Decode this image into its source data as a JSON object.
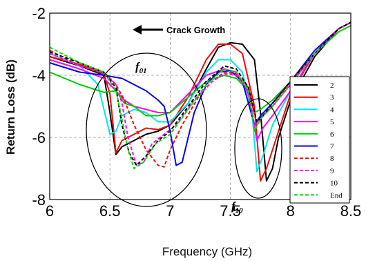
{
  "chart_data": {
    "type": "line",
    "title": "",
    "xlabel": "Frequency (GHz)",
    "ylabel": "Return Loss (dB)",
    "xlim": [
      6,
      8.5
    ],
    "ylim": [
      -8,
      -2
    ],
    "xticks": [
      6,
      6.5,
      7,
      7.5,
      8,
      8.5
    ],
    "yticks": [
      -2,
      -4,
      -6,
      -8
    ],
    "xtick_labels": [
      "6",
      "6.5",
      "7",
      "7.5",
      "8",
      "8.5"
    ],
    "ytick_labels": [
      "-2",
      "-4",
      "-6",
      "-8"
    ],
    "grid": "dashed",
    "legend_position": "right",
    "annotations": [
      {
        "text": "Crack Growth",
        "arrow": "left"
      },
      {
        "text": "f",
        "subscript": "01"
      },
      {
        "text": "f",
        "subscript": "10"
      }
    ],
    "series": [
      {
        "name": "2",
        "color": "#000000",
        "dash": false,
        "points": [
          [
            6,
            -3.4
          ],
          [
            6.25,
            -3.7
          ],
          [
            6.45,
            -4.0
          ],
          [
            6.5,
            -5.2
          ],
          [
            6.55,
            -6.55
          ],
          [
            6.6,
            -6.3
          ],
          [
            6.7,
            -6.1
          ],
          [
            6.8,
            -5.9
          ],
          [
            6.9,
            -5.8
          ],
          [
            7.0,
            -5.6
          ],
          [
            7.15,
            -4.9
          ],
          [
            7.3,
            -3.8
          ],
          [
            7.4,
            -3.1
          ],
          [
            7.5,
            -2.95
          ],
          [
            7.6,
            -3.0
          ],
          [
            7.7,
            -3.5
          ],
          [
            7.75,
            -5.2
          ],
          [
            7.8,
            -7.4
          ],
          [
            7.85,
            -7.0
          ],
          [
            7.9,
            -6.0
          ],
          [
            8.0,
            -4.8
          ],
          [
            8.2,
            -3.4
          ],
          [
            8.4,
            -2.5
          ],
          [
            8.5,
            -2.3
          ]
        ]
      },
      {
        "name": "3",
        "color": "#ff0000",
        "dash": false,
        "points": [
          [
            6,
            -3.4
          ],
          [
            6.25,
            -3.65
          ],
          [
            6.45,
            -3.95
          ],
          [
            6.5,
            -4.6
          ],
          [
            6.55,
            -6.5
          ],
          [
            6.6,
            -6.1
          ],
          [
            6.7,
            -5.9
          ],
          [
            6.8,
            -5.7
          ],
          [
            6.9,
            -5.75
          ],
          [
            7.0,
            -5.6
          ],
          [
            7.15,
            -4.7
          ],
          [
            7.3,
            -3.5
          ],
          [
            7.4,
            -3.0
          ],
          [
            7.5,
            -3.0
          ],
          [
            7.6,
            -3.3
          ],
          [
            7.7,
            -5.0
          ],
          [
            7.75,
            -7.4
          ],
          [
            7.8,
            -7.0
          ],
          [
            7.9,
            -5.8
          ],
          [
            8.0,
            -4.6
          ],
          [
            8.2,
            -3.3
          ],
          [
            8.4,
            -2.5
          ],
          [
            8.5,
            -2.3
          ]
        ]
      },
      {
        "name": "4",
        "color": "#00e5ee",
        "dash": false,
        "points": [
          [
            6,
            -3.3
          ],
          [
            6.25,
            -3.7
          ],
          [
            6.4,
            -4.3
          ],
          [
            6.5,
            -5.9
          ],
          [
            6.55,
            -5.8
          ],
          [
            6.6,
            -5.3
          ],
          [
            6.7,
            -5.1
          ],
          [
            6.8,
            -5.2
          ],
          [
            6.9,
            -5.5
          ],
          [
            7.0,
            -5.5
          ],
          [
            7.15,
            -4.9
          ],
          [
            7.3,
            -3.9
          ],
          [
            7.4,
            -3.5
          ],
          [
            7.5,
            -3.5
          ],
          [
            7.6,
            -3.9
          ],
          [
            7.68,
            -5.2
          ],
          [
            7.72,
            -7.1
          ],
          [
            7.77,
            -6.6
          ],
          [
            7.85,
            -5.6
          ],
          [
            8.0,
            -4.5
          ],
          [
            8.2,
            -3.3
          ],
          [
            8.4,
            -2.5
          ],
          [
            8.5,
            -2.3
          ]
        ]
      },
      {
        "name": "5",
        "color": "#ff00ff",
        "dash": false,
        "points": [
          [
            6,
            -3.5
          ],
          [
            6.25,
            -3.8
          ],
          [
            6.45,
            -4.1
          ],
          [
            6.55,
            -4.5
          ],
          [
            6.62,
            -4.8
          ],
          [
            6.7,
            -5.0
          ],
          [
            6.8,
            -5.1
          ],
          [
            6.9,
            -5.2
          ],
          [
            7.0,
            -5.2
          ],
          [
            7.15,
            -4.6
          ],
          [
            7.3,
            -4.0
          ],
          [
            7.45,
            -3.8
          ],
          [
            7.55,
            -3.9
          ],
          [
            7.65,
            -4.6
          ],
          [
            7.72,
            -6.1
          ],
          [
            7.77,
            -5.7
          ],
          [
            7.85,
            -5.3
          ],
          [
            8.0,
            -4.5
          ],
          [
            8.2,
            -3.3
          ],
          [
            8.4,
            -2.5
          ],
          [
            8.5,
            -2.3
          ]
        ]
      },
      {
        "name": "6",
        "color": "#00cc00",
        "dash": false,
        "points": [
          [
            6,
            -3.9
          ],
          [
            6.25,
            -4.3
          ],
          [
            6.45,
            -4.55
          ],
          [
            6.55,
            -4.5
          ],
          [
            6.62,
            -4.9
          ],
          [
            6.7,
            -5.0
          ],
          [
            6.8,
            -5.3
          ],
          [
            6.9,
            -5.3
          ],
          [
            7.0,
            -5.2
          ],
          [
            7.15,
            -4.7
          ],
          [
            7.3,
            -4.2
          ],
          [
            7.45,
            -4.0
          ],
          [
            7.55,
            -4.1
          ],
          [
            7.65,
            -4.5
          ],
          [
            7.7,
            -5.2
          ],
          [
            7.75,
            -5.1
          ],
          [
            7.85,
            -4.8
          ],
          [
            8.0,
            -4.2
          ],
          [
            8.2,
            -3.3
          ],
          [
            8.4,
            -2.6
          ],
          [
            8.5,
            -2.4
          ]
        ]
      },
      {
        "name": "7",
        "color": "#0000ff",
        "dash": false,
        "points": [
          [
            6,
            -3.6
          ],
          [
            6.25,
            -3.9
          ],
          [
            6.45,
            -4.0
          ],
          [
            6.6,
            -4.1
          ],
          [
            6.7,
            -4.3
          ],
          [
            6.8,
            -4.5
          ],
          [
            6.9,
            -4.8
          ],
          [
            6.95,
            -5.0
          ],
          [
            7.0,
            -5.8
          ],
          [
            7.05,
            -6.9
          ],
          [
            7.1,
            -6.8
          ],
          [
            7.2,
            -5.2
          ],
          [
            7.3,
            -4.3
          ],
          [
            7.4,
            -3.9
          ],
          [
            7.5,
            -3.85
          ],
          [
            7.6,
            -4.2
          ],
          [
            7.7,
            -5.6
          ],
          [
            7.75,
            -5.3
          ],
          [
            7.85,
            -4.9
          ],
          [
            8.0,
            -4.2
          ],
          [
            8.2,
            -3.2
          ],
          [
            8.4,
            -2.5
          ],
          [
            8.5,
            -2.3
          ]
        ]
      },
      {
        "name": "8",
        "color": "#ff0000",
        "dash": true,
        "points": [
          [
            6,
            -3.2
          ],
          [
            6.25,
            -3.7
          ],
          [
            6.45,
            -3.9
          ],
          [
            6.55,
            -4.3
          ],
          [
            6.62,
            -4.8
          ],
          [
            6.7,
            -5.6
          ],
          [
            6.8,
            -6.4
          ],
          [
            6.9,
            -6.9
          ],
          [
            6.95,
            -6.95
          ],
          [
            7.0,
            -6.4
          ],
          [
            7.1,
            -5.6
          ],
          [
            7.25,
            -4.6
          ],
          [
            7.35,
            -4.2
          ],
          [
            7.45,
            -3.9
          ],
          [
            7.55,
            -3.95
          ],
          [
            7.65,
            -4.4
          ],
          [
            7.72,
            -5.6
          ],
          [
            7.77,
            -5.3
          ],
          [
            7.85,
            -5.0
          ],
          [
            8.0,
            -4.2
          ],
          [
            8.2,
            -3.3
          ],
          [
            8.4,
            -2.5
          ],
          [
            8.5,
            -2.3
          ]
        ]
      },
      {
        "name": "9",
        "color": "#ff00ff",
        "dash": true,
        "points": [
          [
            6,
            -3.3
          ],
          [
            6.25,
            -3.7
          ],
          [
            6.45,
            -3.95
          ],
          [
            6.55,
            -4.3
          ],
          [
            6.6,
            -4.9
          ],
          [
            6.65,
            -6.0
          ],
          [
            6.72,
            -6.9
          ],
          [
            6.78,
            -6.8
          ],
          [
            6.85,
            -6.2
          ],
          [
            6.95,
            -5.9
          ],
          [
            7.05,
            -5.6
          ],
          [
            7.2,
            -4.8
          ],
          [
            7.35,
            -4.2
          ],
          [
            7.45,
            -3.95
          ],
          [
            7.55,
            -4.0
          ],
          [
            7.65,
            -4.5
          ],
          [
            7.7,
            -5.6
          ],
          [
            7.75,
            -5.4
          ],
          [
            7.85,
            -5.0
          ],
          [
            8.0,
            -4.3
          ],
          [
            8.2,
            -3.3
          ],
          [
            8.4,
            -2.5
          ],
          [
            8.5,
            -2.3
          ]
        ]
      },
      {
        "name": "10",
        "color": "#000000",
        "dash": true,
        "points": [
          [
            6,
            -3.25
          ],
          [
            6.25,
            -3.6
          ],
          [
            6.45,
            -3.9
          ],
          [
            6.55,
            -4.4
          ],
          [
            6.6,
            -5.6
          ],
          [
            6.66,
            -6.5
          ],
          [
            6.72,
            -6.9
          ],
          [
            6.8,
            -6.6
          ],
          [
            6.9,
            -6.1
          ],
          [
            7.0,
            -5.8
          ],
          [
            7.15,
            -5.0
          ],
          [
            7.3,
            -4.2
          ],
          [
            7.45,
            -3.7
          ],
          [
            7.55,
            -3.8
          ],
          [
            7.65,
            -4.4
          ],
          [
            7.72,
            -5.5
          ],
          [
            7.77,
            -5.3
          ],
          [
            7.85,
            -4.9
          ],
          [
            8.0,
            -4.2
          ],
          [
            8.2,
            -3.3
          ],
          [
            8.4,
            -2.5
          ],
          [
            8.5,
            -2.3
          ]
        ]
      },
      {
        "name": "End",
        "color": "#00dd00",
        "dash": true,
        "points": [
          [
            6,
            -3.1
          ],
          [
            6.25,
            -3.6
          ],
          [
            6.45,
            -3.9
          ],
          [
            6.55,
            -4.5
          ],
          [
            6.6,
            -5.4
          ],
          [
            6.65,
            -6.4
          ],
          [
            6.7,
            -7.0
          ],
          [
            6.78,
            -6.8
          ],
          [
            6.88,
            -6.2
          ],
          [
            7.0,
            -5.9
          ],
          [
            7.15,
            -5.1
          ],
          [
            7.3,
            -4.3
          ],
          [
            7.45,
            -3.8
          ],
          [
            7.55,
            -3.9
          ],
          [
            7.65,
            -4.5
          ],
          [
            7.7,
            -5.8
          ],
          [
            7.75,
            -5.4
          ],
          [
            7.85,
            -5.0
          ],
          [
            8.0,
            -4.3
          ],
          [
            8.2,
            -3.3
          ],
          [
            8.4,
            -2.6
          ],
          [
            8.5,
            -2.4
          ]
        ]
      }
    ]
  }
}
